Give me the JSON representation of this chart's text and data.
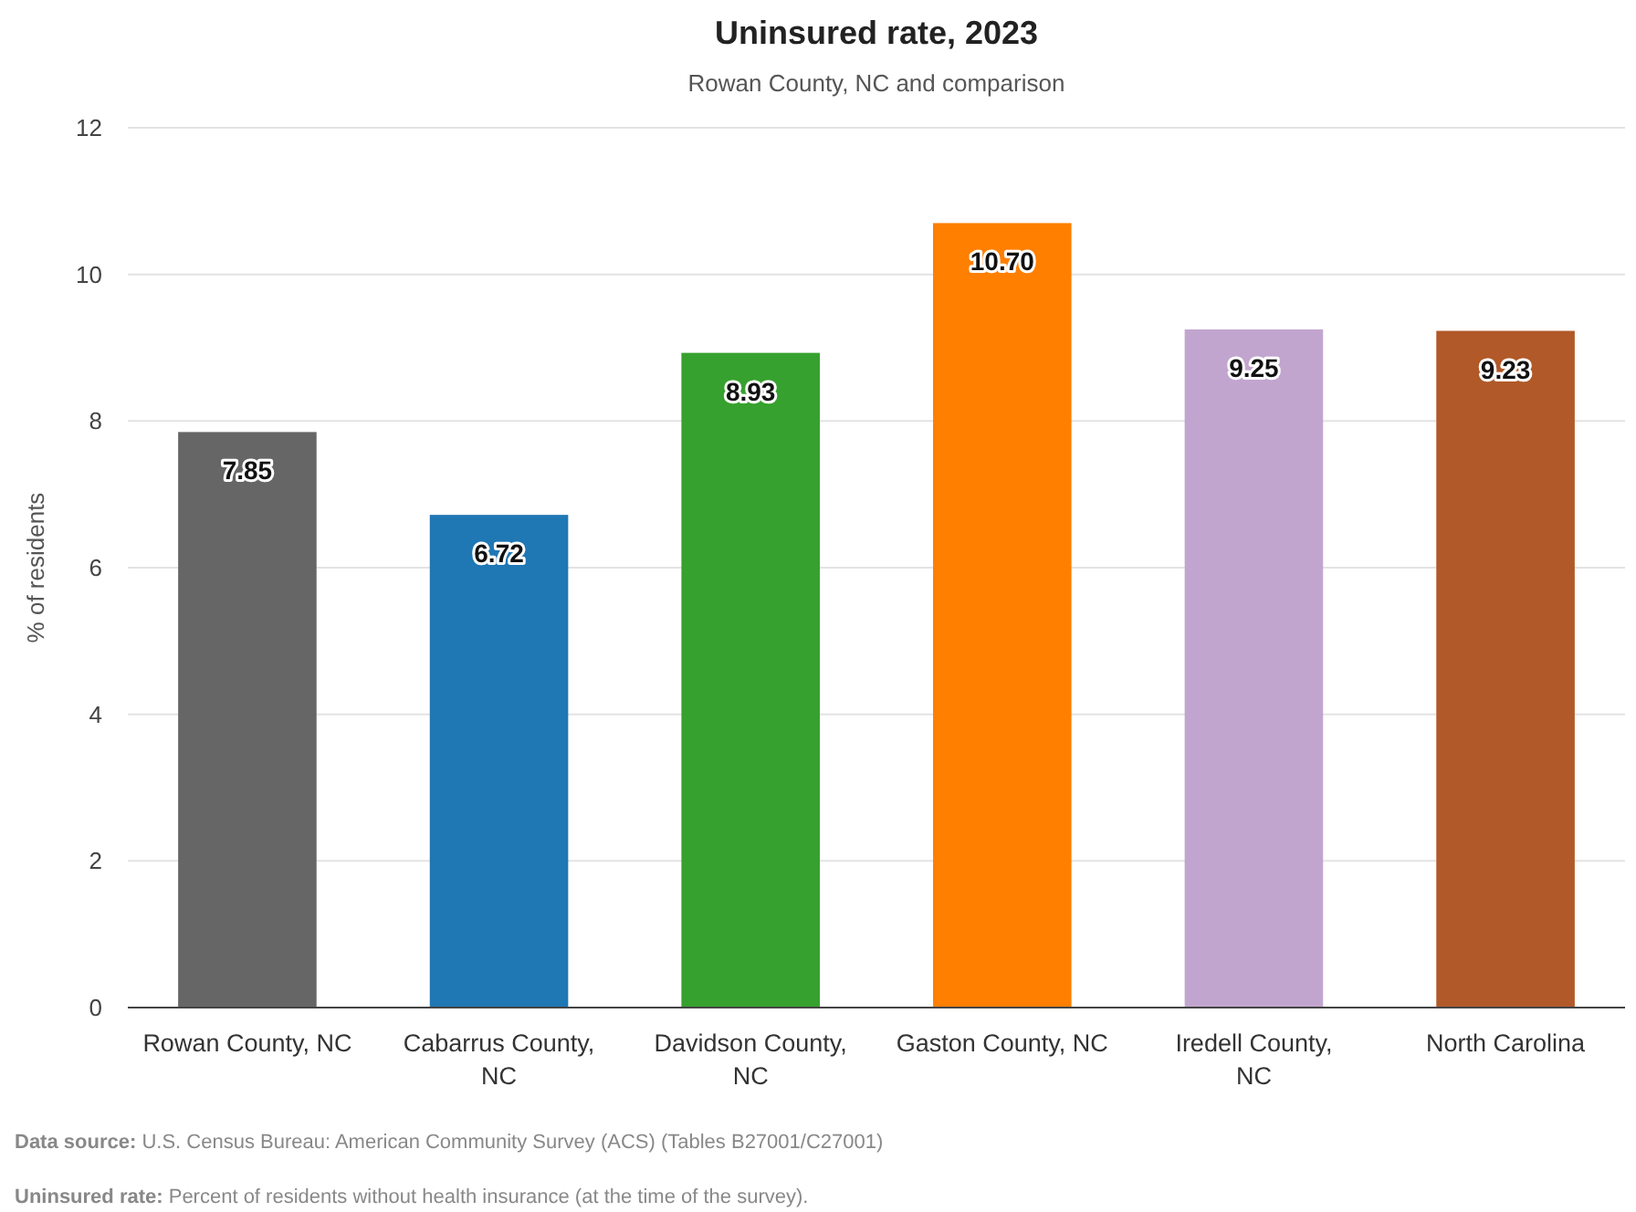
{
  "chart_data": {
    "type": "bar",
    "title": "Uninsured rate, 2023",
    "subtitle": "Rowan County, NC and comparison",
    "ylabel": "% of residents",
    "categories": [
      "Rowan County, NC",
      "Cabarrus County, NC",
      "Davidson County, NC",
      "Gaston County, NC",
      "Iredell County, NC",
      "North Carolina"
    ],
    "values": [
      7.85,
      6.72,
      8.93,
      10.7,
      9.25,
      9.23
    ],
    "value_labels": [
      "7.85",
      "6.72",
      "8.93",
      "10.70",
      "9.25",
      "9.23"
    ],
    "colors": [
      "#666666",
      "#1f77b4",
      "#36a12e",
      "#ff7f00",
      "#c2a5cf",
      "#b15928"
    ],
    "ylim": [
      0,
      12
    ],
    "yticks": [
      0,
      2,
      4,
      6,
      8,
      10,
      12
    ],
    "grid": "y",
    "annotations": [
      "Data source: U.S. Census Bureau: American Community Survey (ACS) (Tables B27001/C27001)",
      "Uninsured rate: Percent of residents without health insurance (at the time of the survey)."
    ]
  }
}
